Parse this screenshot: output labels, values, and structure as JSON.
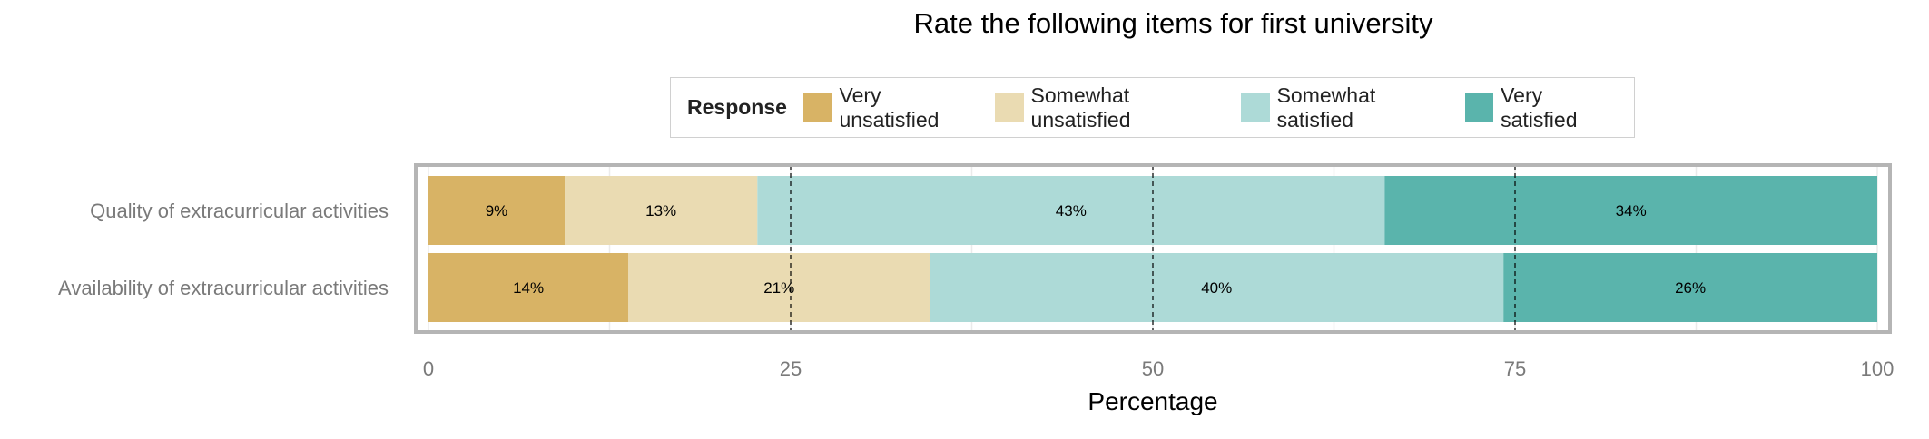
{
  "chart_data": {
    "type": "bar",
    "orientation": "horizontal",
    "stacked": true,
    "title": "Rate the following items for first university",
    "xlabel": "Percentage",
    "ylabel": "",
    "xlim": [
      0,
      100
    ],
    "xticks": [
      0,
      25,
      50,
      75,
      100
    ],
    "legend_title": "Response",
    "legend_position": "top",
    "categories": [
      "Quality of extracurricular activities",
      "Availability of extracurricular activities"
    ],
    "series": [
      {
        "name": "Very unsatisfied",
        "color": "#d8b365",
        "values": [
          9.4,
          13.8
        ],
        "labels": [
          "9%",
          "14%"
        ]
      },
      {
        "name": "Somewhat unsatisfied",
        "color": "#eadbb2",
        "values": [
          13.3,
          20.8
        ],
        "labels": [
          "13%",
          "21%"
        ]
      },
      {
        "name": "Somewhat satisfied",
        "color": "#addad7",
        "values": [
          43.3,
          39.6
        ],
        "labels": [
          "43%",
          "40%"
        ]
      },
      {
        "name": "Very satisfied",
        "color": "#5ab4ac",
        "values": [
          34.0,
          25.8
        ],
        "labels": [
          "34%",
          "26%"
        ]
      }
    ],
    "reference_lines": [
      25,
      50,
      75
    ],
    "grid": true
  }
}
